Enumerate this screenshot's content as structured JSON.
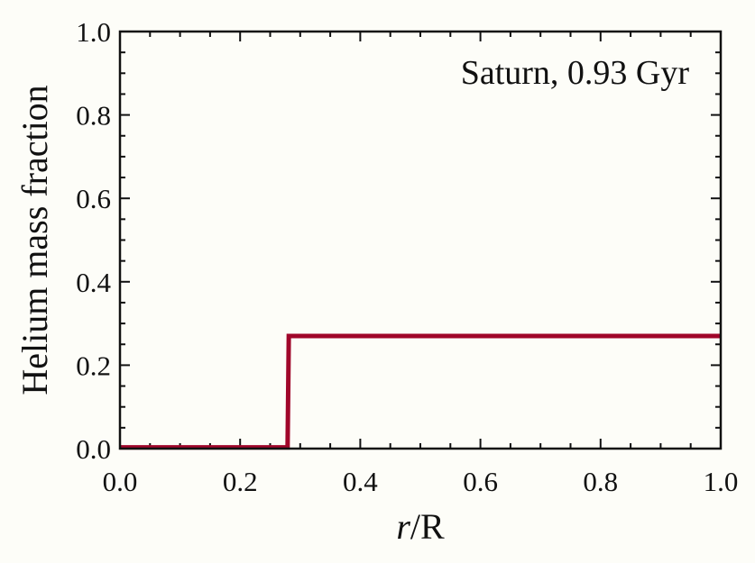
{
  "chart_data": {
    "type": "line",
    "title": "",
    "annotation": "Saturn, 0.93 Gyr",
    "xlabel_var": "r",
    "xlabel_rest": "/R",
    "ylabel": "Helium mass fraction",
    "xlim": [
      0.0,
      1.0
    ],
    "ylim": [
      0.0,
      1.0
    ],
    "x_ticks": [
      "0.0",
      "0.2",
      "0.4",
      "0.6",
      "0.8",
      "1.0"
    ],
    "y_ticks": [
      "0.0",
      "0.2",
      "0.4",
      "0.6",
      "0.8",
      "1.0"
    ],
    "grid": false,
    "series": [
      {
        "color": "#a0062a",
        "x": [
          0.0,
          0.279,
          0.281,
          1.0
        ],
        "y": [
          0.003,
          0.003,
          0.27,
          0.27
        ]
      }
    ]
  }
}
